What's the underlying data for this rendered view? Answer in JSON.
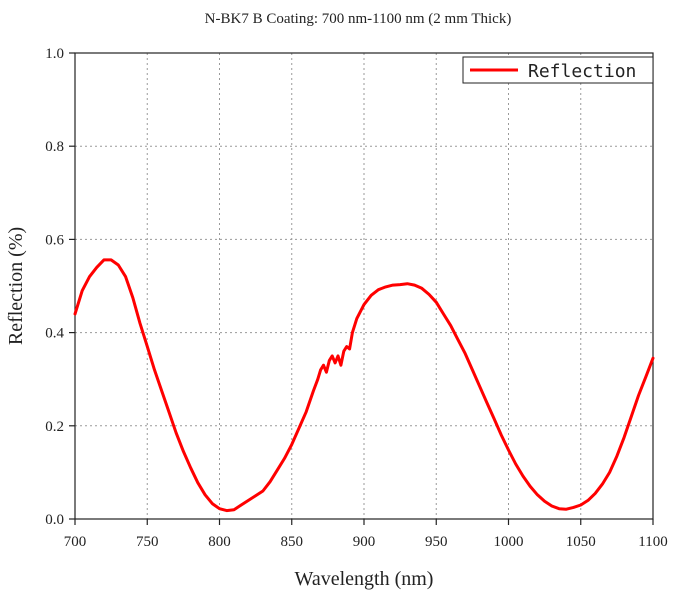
{
  "chart_data": {
    "type": "line",
    "title": "N-BK7 B Coating: 700 nm-1100 nm (2 mm Thick)",
    "xlabel": "Wavelength (nm)",
    "ylabel": "Reflection (%)",
    "xlim": [
      700,
      1100
    ],
    "ylim": [
      0,
      1.0
    ],
    "xticks": [
      "700",
      "750",
      "800",
      "850",
      "900",
      "950",
      "1000",
      "1050",
      "1100"
    ],
    "yticks": [
      "0.0",
      "0.2",
      "0.4",
      "0.6",
      "0.8",
      "1.0"
    ],
    "grid": true,
    "legend_position": "top-right",
    "series": [
      {
        "name": "Reflection",
        "color": "#ff0000",
        "x": [
          700,
          705,
          710,
          715,
          720,
          725,
          730,
          735,
          740,
          745,
          750,
          755,
          760,
          765,
          770,
          775,
          780,
          785,
          790,
          795,
          800,
          805,
          810,
          815,
          820,
          825,
          830,
          835,
          840,
          845,
          850,
          855,
          860,
          865,
          868,
          870,
          872,
          874,
          876,
          878,
          880,
          882,
          884,
          886,
          888,
          890,
          892,
          895,
          900,
          905,
          910,
          915,
          920,
          925,
          930,
          935,
          940,
          945,
          950,
          955,
          960,
          965,
          970,
          975,
          980,
          985,
          990,
          995,
          1000,
          1005,
          1010,
          1015,
          1020,
          1025,
          1030,
          1035,
          1040,
          1045,
          1050,
          1055,
          1060,
          1065,
          1070,
          1075,
          1080,
          1085,
          1090,
          1095,
          1100
        ],
        "values": [
          0.44,
          0.49,
          0.52,
          0.54,
          0.556,
          0.556,
          0.545,
          0.52,
          0.475,
          0.42,
          0.37,
          0.32,
          0.275,
          0.23,
          0.185,
          0.145,
          0.11,
          0.078,
          0.052,
          0.033,
          0.022,
          0.018,
          0.02,
          0.03,
          0.04,
          0.05,
          0.06,
          0.08,
          0.105,
          0.13,
          0.16,
          0.195,
          0.23,
          0.275,
          0.3,
          0.32,
          0.33,
          0.315,
          0.34,
          0.35,
          0.335,
          0.35,
          0.33,
          0.36,
          0.37,
          0.365,
          0.4,
          0.43,
          0.46,
          0.48,
          0.492,
          0.498,
          0.502,
          0.503,
          0.505,
          0.502,
          0.495,
          0.482,
          0.465,
          0.44,
          0.415,
          0.385,
          0.355,
          0.32,
          0.285,
          0.25,
          0.215,
          0.18,
          0.148,
          0.118,
          0.092,
          0.07,
          0.052,
          0.038,
          0.028,
          0.022,
          0.021,
          0.025,
          0.03,
          0.04,
          0.055,
          0.075,
          0.1,
          0.135,
          0.175,
          0.22,
          0.265,
          0.305,
          0.345
        ]
      }
    ]
  }
}
